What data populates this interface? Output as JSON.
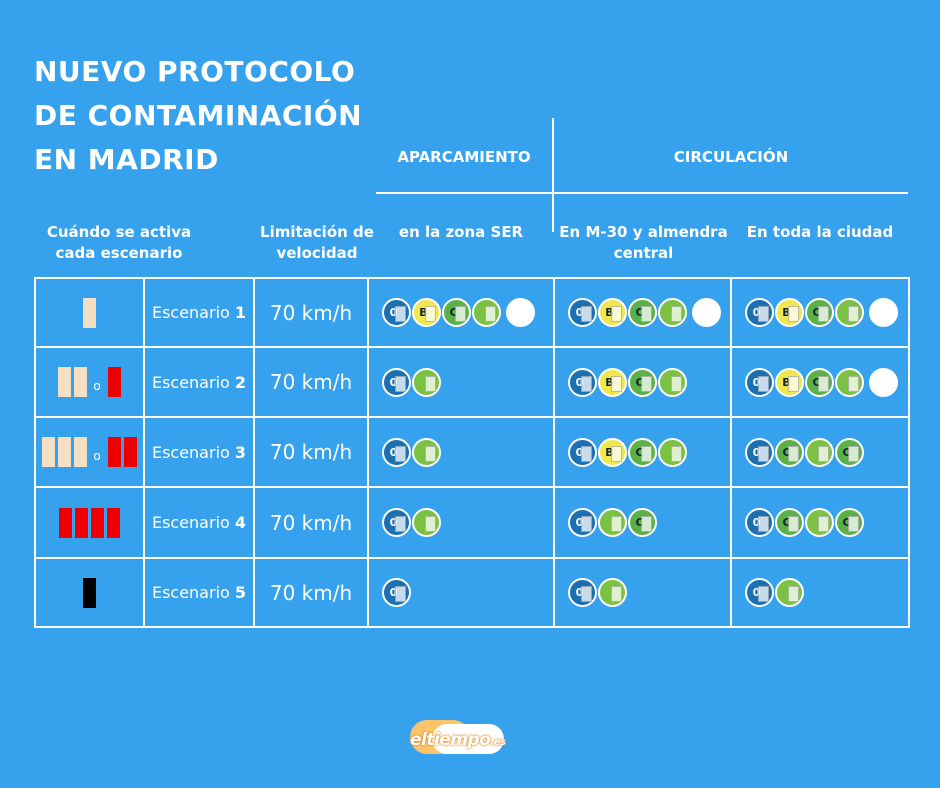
{
  "title": [
    "NUEVO PROTOCOLO",
    "DE CONTAMINACIÓN",
    "EN MADRID"
  ],
  "groups": {
    "parking": "APARCAMIENTO",
    "traffic": "CIRCULACIÓN"
  },
  "column_headers": {
    "trigger": "Cuándo se activa cada escenario",
    "speed": "Limitación de velocidad",
    "ser_zone": "en la zona SER",
    "m30": "En M-30 y almendra central",
    "city": "En toda la ciudad"
  },
  "scenarios": [
    {
      "label": "Escenario",
      "number": "1",
      "speed": "70 km/h",
      "trigger": [
        "beige"
      ],
      "ser_zone": [
        "0",
        "B",
        "C",
        "ECO",
        "empty"
      ],
      "m30": [
        "0",
        "B",
        "C",
        "ECO",
        "empty"
      ],
      "city": [
        "0",
        "B",
        "C",
        "ECO",
        "empty"
      ]
    },
    {
      "label": "Escenario",
      "number": "2",
      "speed": "70 km/h",
      "trigger": [
        "beige",
        "beige",
        "o",
        "red"
      ],
      "ser_zone": [
        "0",
        "ECO"
      ],
      "m30": [
        "0",
        "B",
        "C",
        "ECO"
      ],
      "city": [
        "0",
        "B",
        "C",
        "ECO",
        "empty"
      ]
    },
    {
      "label": "Escenario",
      "number": "3",
      "speed": "70 km/h",
      "trigger": [
        "beige",
        "beige",
        "beige",
        "o",
        "red",
        "red"
      ],
      "ser_zone": [
        "0",
        "ECO"
      ],
      "m30": [
        "0",
        "B",
        "C",
        "ECO"
      ],
      "city": [
        "0",
        "C",
        "ECO",
        "C"
      ]
    },
    {
      "label": "Escenario",
      "number": "4",
      "speed": "70 km/h",
      "trigger": [
        "red",
        "red",
        "red",
        "red"
      ],
      "ser_zone": [
        "0",
        "ECO"
      ],
      "m30": [
        "0",
        "ECO",
        "C"
      ],
      "city": [
        "0",
        "C",
        "ECO",
        "C"
      ]
    },
    {
      "label": "Escenario",
      "number": "5",
      "speed": "70 km/h",
      "trigger": [
        "black"
      ],
      "ser_zone": [
        "0"
      ],
      "m30": [
        "0",
        "ECO"
      ],
      "city": [
        "0",
        "ECO"
      ]
    }
  ],
  "trigger_separator": "o",
  "badge_letters": {
    "0": "0",
    "B": "B",
    "C": "C",
    "ECO": ""
  },
  "colors": {
    "background": "#36a2ee",
    "badge_zero": "#1b6fb3",
    "badge_eco": "#7cc242",
    "badge_c": "#5bb047",
    "badge_b": "#f0e84a",
    "trigger_beige": "#f5dfc2",
    "trigger_red": "#ee0000",
    "trigger_black": "#000000"
  },
  "logo": {
    "name": "eltiempo",
    "tld": ".es"
  }
}
